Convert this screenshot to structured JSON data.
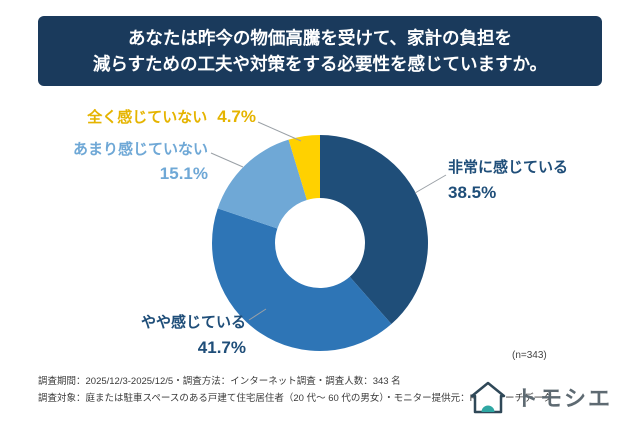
{
  "title": {
    "line1": "あなたは昨今の物価高騰を受けて、家計の負担を",
    "line2": "減らすための工夫や対策をする必要性を感じていますか。"
  },
  "chart_data": {
    "type": "pie",
    "subtype": "donut",
    "title": "あなたは昨今の物価高騰を受けて、家計の負担を減らすための工夫や対策をする必要性を感じていますか。",
    "n": 343,
    "n_label": "(n=343)",
    "start_angle_deg": 0,
    "direction": "clockwise",
    "segments": [
      {
        "label": "非常に感じている",
        "value": 38.5,
        "pct_label": "38.5%",
        "color": "#1f4e79"
      },
      {
        "label": "やや感じている",
        "value": 41.7,
        "pct_label": "41.7%",
        "color": "#2e75b6"
      },
      {
        "label": "あまり感じていない",
        "value": 15.1,
        "pct_label": "15.1%",
        "color": "#6fa8d6"
      },
      {
        "label": "全く感じていない",
        "value": 4.7,
        "pct_label": "4.7%",
        "color": "#ffd100"
      }
    ]
  },
  "footer": {
    "line1": "調査期間：2025/12/3-2025/12/5・調査方法：インターネット調査・調査人数：343 名",
    "line2": "調査対象：庭または駐車スペースのある戸建て住宅居住者（20 代～ 60 代の男女）・モニター提供元：RC リサーチデータ"
  },
  "brand": {
    "name": "トモシエ"
  }
}
